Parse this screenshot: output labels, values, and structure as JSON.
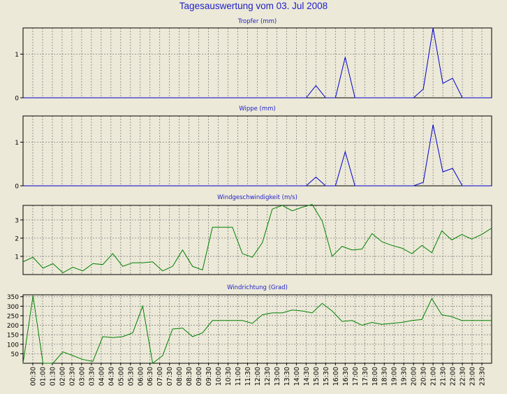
{
  "page": {
    "title": "Tagesauswertung vom 03. Jul 2008"
  },
  "colors": {
    "background": "#ECE9D8",
    "title": "#1E1EC8",
    "rain_line": "#0000CC",
    "wind_line": "#008000",
    "grid": "#808080",
    "axis": "#000000"
  },
  "time_labels": [
    "00:30",
    "01:00",
    "01:30",
    "02:00",
    "02:30",
    "03:00",
    "03:30",
    "04:00",
    "04:30",
    "05:00",
    "05:30",
    "06:00",
    "06:30",
    "07:00",
    "07:30",
    "08:00",
    "08:30",
    "09:00",
    "09:30",
    "10:00",
    "10:30",
    "11:00",
    "11:30",
    "12:00",
    "12:30",
    "13:00",
    "13:30",
    "14:00",
    "14:30",
    "15:00",
    "15:30",
    "16:00",
    "16:30",
    "17:00",
    "17:30",
    "18:00",
    "18:30",
    "19:00",
    "19:30",
    "20:00",
    "20:30",
    "21:00",
    "21:30",
    "22:00",
    "22:30",
    "23:00",
    "23:30"
  ],
  "chart_data": [
    {
      "type": "line",
      "title": "Tropfer (mm)",
      "yticks": [
        "0",
        "1"
      ],
      "ylim": [
        0,
        1.6
      ],
      "grid": true,
      "color": "#0000CC",
      "series": [
        {
          "values": [
            0,
            0,
            0,
            0,
            0,
            0,
            0,
            0,
            0,
            0,
            0,
            0,
            0,
            0,
            0,
            0,
            0,
            0,
            0,
            0,
            0,
            0,
            0,
            0,
            0,
            0,
            0,
            0,
            0,
            0,
            0.28,
            0,
            0,
            0.93,
            0,
            0,
            0,
            0,
            0,
            0,
            0,
            0.2,
            1.6,
            0.33,
            0.45,
            0,
            0,
            0,
            0
          ]
        }
      ]
    },
    {
      "type": "line",
      "title": "Wippe (mm)",
      "yticks": [
        "0",
        "1"
      ],
      "ylim": [
        0,
        1.6
      ],
      "grid": true,
      "color": "#0000CC",
      "series": [
        {
          "values": [
            0,
            0,
            0,
            0,
            0,
            0,
            0,
            0,
            0,
            0,
            0,
            0,
            0,
            0,
            0,
            0,
            0,
            0,
            0,
            0,
            0,
            0,
            0,
            0,
            0,
            0,
            0,
            0,
            0,
            0,
            0.2,
            0,
            0,
            0.78,
            0,
            0,
            0,
            0,
            0,
            0,
            0,
            0.08,
            1.4,
            0.32,
            0.4,
            0,
            0,
            0,
            0
          ]
        }
      ]
    },
    {
      "type": "line",
      "title": "Windgeschwindigkeit (m/s)",
      "yticks": [
        "1",
        "2",
        "3"
      ],
      "ylim": [
        0,
        3.8
      ],
      "grid": true,
      "color": "#008000",
      "series": [
        {
          "values": [
            0.7,
            0.95,
            0.35,
            0.6,
            0.1,
            0.4,
            0.2,
            0.6,
            0.55,
            1.15,
            0.45,
            0.65,
            0.65,
            0.7,
            0.2,
            0.45,
            1.35,
            0.45,
            0.25,
            2.6,
            2.6,
            2.6,
            1.15,
            0.95,
            1.75,
            3.6,
            3.8,
            3.5,
            3.7,
            3.85,
            2.95,
            1.0,
            1.55,
            1.35,
            1.4,
            2.25,
            1.8,
            1.6,
            1.45,
            1.15,
            1.6,
            1.2,
            2.4,
            1.9,
            2.2,
            1.95,
            2.2,
            2.55
          ]
        }
      ]
    },
    {
      "type": "line",
      "title": "Windrichtung (Grad)",
      "yticks": [
        "50",
        "100",
        "150",
        "200",
        "250",
        "300",
        "350"
      ],
      "ylim": [
        0,
        360
      ],
      "grid": true,
      "color": "#008000",
      "series": [
        {
          "values": [
            0,
            355,
            0,
            0,
            60,
            40,
            20,
            10,
            140,
            135,
            140,
            160,
            300,
            0,
            40,
            180,
            185,
            140,
            160,
            225,
            225,
            225,
            225,
            210,
            255,
            265,
            265,
            280,
            275,
            265,
            315,
            275,
            220,
            225,
            200,
            215,
            205,
            210,
            215,
            225,
            230,
            340,
            255,
            245,
            225,
            225,
            225,
            225
          ]
        }
      ]
    }
  ]
}
